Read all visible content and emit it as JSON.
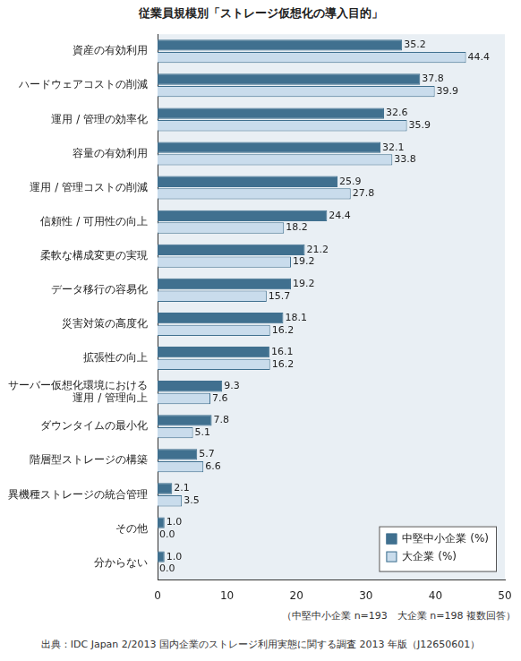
{
  "chart_data": {
    "type": "bar",
    "orientation": "horizontal",
    "title": "従業員規模別「ストレージ仮想化の導入目的」",
    "categories": [
      "資産の有効利用",
      "ハードウェアコストの削減",
      "運用 / 管理の効率化",
      "容量の有効利用",
      "運用 / 管理コストの削減",
      "信頼性 / 可用性の向上",
      "柔軟な構成変更の実現",
      "データ移行の容易化",
      "災害対策の高度化",
      "拡張性の向上",
      [
        "サーバー仮想化環境における",
        "運用 / 管理向上"
      ],
      "ダウンタイムの最小化",
      "階層型ストレージの構築",
      "異機種ストレージの統合管理",
      "その他",
      "分からない"
    ],
    "series": [
      {
        "name": "中堅中小企業 (%)",
        "color": "#40708f",
        "values": [
          35.2,
          37.8,
          32.6,
          32.1,
          25.9,
          24.4,
          21.2,
          19.2,
          18.1,
          16.1,
          9.3,
          7.8,
          5.7,
          2.1,
          1.0,
          1.0
        ],
        "value_labels": [
          "35.2",
          "37.8",
          "32.6",
          "32.1",
          "25.9",
          "24.4",
          "21.2",
          "19.2",
          "18.1",
          "16.1",
          "9.3",
          "7.8",
          "5.7",
          "2.1",
          "1.0",
          "1.0"
        ]
      },
      {
        "name": "大企業 (%)",
        "color": "#c9dcec",
        "values": [
          44.4,
          39.9,
          35.9,
          33.8,
          27.8,
          18.2,
          19.2,
          15.7,
          16.2,
          16.2,
          7.6,
          5.1,
          6.6,
          3.5,
          0.0,
          0.0
        ],
        "value_labels": [
          "44.4",
          "39.9",
          "35.9",
          "33.8",
          "27.8",
          "18.2",
          "19.2",
          "15.7",
          "16.2",
          "16.2",
          "7.6",
          "5.1",
          "6.6",
          "3.5",
          "0.0",
          "0.0"
        ]
      }
    ],
    "xlim": [
      0,
      50
    ],
    "xticks": [
      0,
      10,
      20,
      30,
      40,
      50
    ],
    "grid": false,
    "legend": "bottom-right",
    "data_labels": true,
    "note": "（中堅中小企業 n=193　大企業 n=198 複数回答）",
    "source": "出典：IDC Japan 2/2013 国内企業のストレージ利用実態に関する調査 2013 年版（J12650601）"
  }
}
